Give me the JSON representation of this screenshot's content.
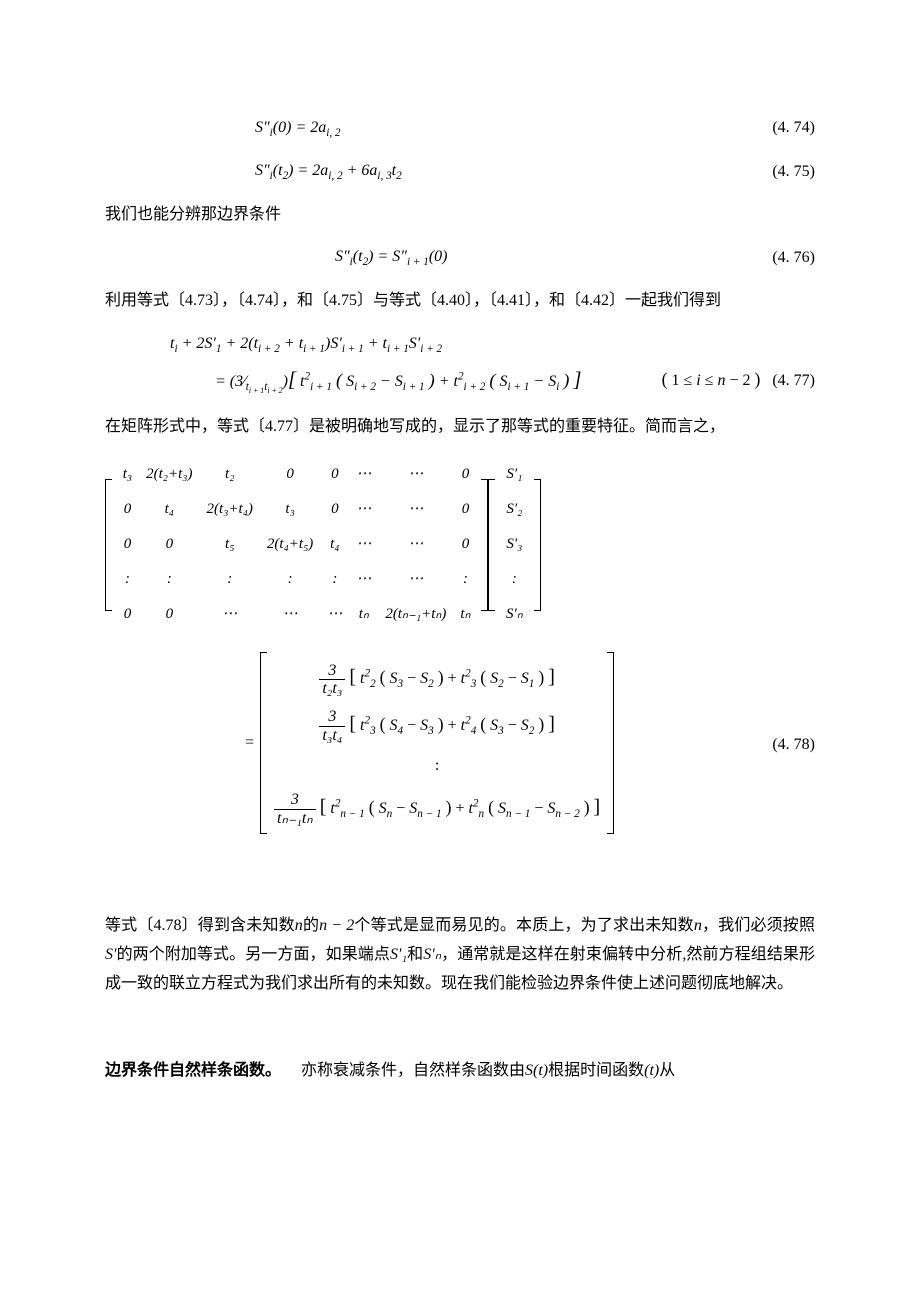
{
  "eq474": {
    "formula": "S″ᵢ(0) = 2aᵢ,₂",
    "num": "(4. 74)"
  },
  "eq475": {
    "formula": "S″ᵢ(t₂) = 2aᵢ,₂ + 6aᵢ,₃t₂",
    "num": "(4. 75)"
  },
  "line1": "我们也能分辨那边界条件",
  "eq476": {
    "formula": "S″ᵢ(t₂) = S″ᵢ₊₁(0)",
    "num": "(4. 76)"
  },
  "line2": "利用等式〔4.73〕，〔4.74〕，和〔4.75〕与等式〔4.40〕，〔4.41〕，和〔4.42〕一起我们得到",
  "eq477_top": "tᵢ + 2S′₁ + 2(tᵢ₊₂ + tᵢ₊₁)S′ᵢ₊₁ + tᵢ₊₁S′ᵢ₊₂",
  "eq477_main": "= (3⁄tᵢ₊₁tᵢ₊₂) [ t²ᵢ₊₁ ( Sᵢ₊₂ − Sᵢ₊₁ ) + t²ᵢ₊₂ ( Sᵢ₊₁ − Sᵢ ) ]",
  "eq477_cond": "( 1 ≤ i ≤ n − 2 )",
  "eq477_num": "(4. 77)",
  "line3": "在矩阵形式中，等式〔4.77〕是被明确地写成的，显示了那等式的重要特征。简而言之，",
  "matrixA": {
    "rows": [
      [
        "t₃",
        "2(t₂+t₃)",
        "t₂",
        "0",
        "0",
        "⋯",
        "⋯",
        "0"
      ],
      [
        "0",
        "t₄",
        "2(t₃+t₄)",
        "t₃",
        "0",
        "⋯",
        "⋯",
        "0"
      ],
      [
        "0",
        "0",
        "t₅",
        "2(t₄+t₅)",
        "t₄",
        "⋯",
        "⋯",
        "0"
      ],
      [
        ":",
        ":",
        ":",
        ":",
        ":",
        "⋯",
        "⋯",
        ":"
      ],
      [
        "0",
        "0",
        "⋯",
        "⋯",
        "⋯",
        "tₙ",
        "2(tₙ₋₁+tₙ)",
        "tₙ"
      ]
    ]
  },
  "vectorS": [
    "S′₁",
    "S′₂",
    "S′₃",
    ":",
    "S′ₙ"
  ],
  "rhs": {
    "r1": {
      "coef_num": "3",
      "coef_den": "t₂t₃",
      "body": "[ t²₂ ( S₃ − S₂ ) + t²₃ ( S₂ − S₁ ) ]"
    },
    "r2": {
      "coef_num": "3",
      "coef_den": "t₃t₄",
      "body": "[ t²₃ ( S₄ − S₃ ) + t²₄ ( S₃ − S₂ ) ]"
    },
    "r3": ":",
    "r4": {
      "coef_num": "3",
      "coef_den": "tₙ₋₁tₙ",
      "body": "[ t²ₙ₋₁ ( Sₙ − Sₙ₋₁ ) + t²ₙ ( Sₙ₋₁ − Sₙ₋₂ ) ]"
    }
  },
  "eq478_num": "(4. 78)",
  "para4_a": "等式〔4.78〕得到含未知数",
  "para4_b": "n",
  "para4_c": "的",
  "para4_d": "n − 2",
  "para4_e": "个等式是显而易见的。本质上，为了求出未知数",
  "para4_f": "n",
  "para4_g": "，我们必须按照",
  "para4_h": "S′",
  "para4_i": "的两个附加等式。另一方面，如果端点",
  "para4_j": "S′₁",
  "para4_k": "和",
  "para4_l": "S′ₙ",
  "para4_m": "，通常就是这样在射束偏转中分析,然前方程组结果形成一致的联立方程式为我们求出所有的未知数。现在我们能检验边界条件使上述问题彻底地解决。",
  "heading": "边界条件自然样条函数。",
  "para5_a": "亦称衰减条件，自然样条函数由",
  "para5_b": "S(t)",
  "para5_c": "根据时间函数",
  "para5_d": "(t)",
  "para5_e": "从",
  "style": {
    "text_color": "#000000",
    "bg_color": "#ffffff",
    "body_fontsize": 16,
    "math_font": "Times New Roman",
    "cjk_font": "SimSun"
  }
}
